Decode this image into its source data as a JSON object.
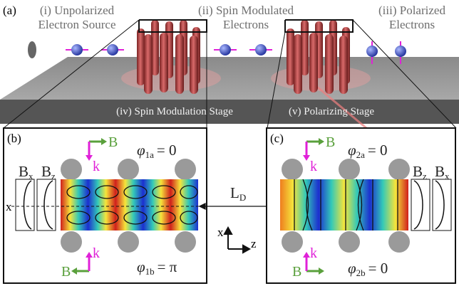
{
  "panel_a": {
    "label": "(a)",
    "source": {
      "line1": "(i) Unpolarized",
      "line2": "Electron Source"
    },
    "modulated": {
      "line1": "(ii) Spin Modulated",
      "line2": "Electrons"
    },
    "polarized": {
      "line1": "(iii) Polarized",
      "line2": "Electrons"
    },
    "stage1": "(iv) Spin Modulation Stage",
    "stage2": "(v) Polarizing Stage"
  },
  "panel_b": {
    "label": "(b)",
    "top": {
      "field": "B",
      "wave": "k",
      "phase": {
        "symbol": "φ",
        "sub": "1a",
        "value": "= 0"
      }
    },
    "bottom": {
      "field": "B",
      "wave": "k",
      "phase": {
        "symbol": "φ",
        "sub": "1b",
        "value": "= π"
      }
    },
    "profiles": [
      {
        "symbol": "B",
        "sub": "x"
      },
      {
        "symbol": "B",
        "sub": "z"
      }
    ],
    "axis": "x"
  },
  "panel_c": {
    "label": "(c)",
    "top": {
      "field": "B",
      "wave": "k",
      "phase": {
        "symbol": "φ",
        "sub": "2a",
        "value": "= 0"
      }
    },
    "bottom": {
      "field": "B",
      "wave": "k",
      "phase": {
        "symbol": "φ",
        "sub": "2b",
        "value": "= 0"
      }
    },
    "profiles": [
      {
        "symbol": "B",
        "sub": "z"
      },
      {
        "symbol": "B",
        "sub": "x"
      }
    ]
  },
  "separation": {
    "symbol": "L",
    "sub": "D"
  },
  "axes": {
    "x": "x",
    "z": "z"
  }
}
